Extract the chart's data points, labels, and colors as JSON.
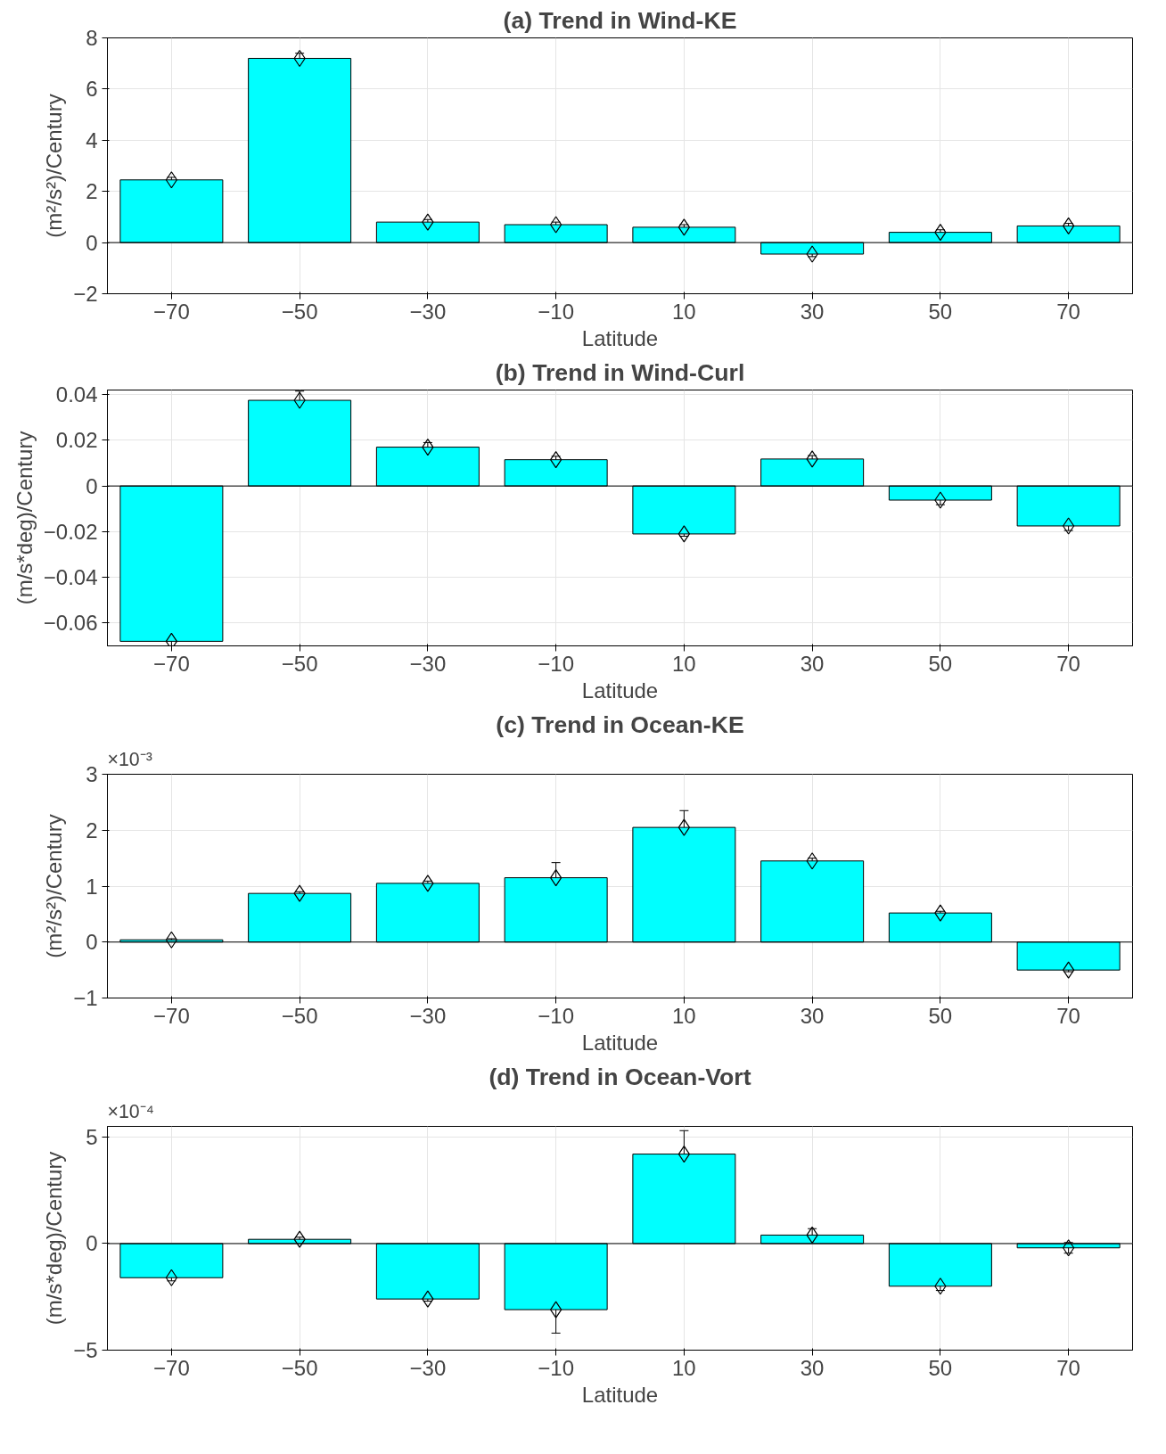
{
  "chart_data": [
    {
      "type": "bar",
      "title": "(a) Trend in Wind-KE",
      "xlabel": "Latitude",
      "ylabel": "(m²/s²)/Century",
      "grid": true,
      "x": [
        -70,
        -50,
        -30,
        -10,
        10,
        30,
        50,
        70
      ],
      "series": [
        {
          "color": "#00ffff",
          "values": [
            2.45,
            7.2,
            0.8,
            0.7,
            0.6,
            -0.45,
            0.4,
            0.65
          ]
        },
        {
          "type": "scatter",
          "marker": "diamond",
          "color": "#000000",
          "values": [
            2.45,
            7.2,
            0.8,
            0.7,
            0.6,
            -0.45,
            0.4,
            0.65
          ],
          "errors": [
            0.1,
            0.2,
            0.1,
            0.1,
            0.1,
            0.1,
            0.1,
            0.1
          ]
        }
      ],
      "xlim": [
        -80,
        80
      ],
      "xticks": [
        -70,
        -50,
        -30,
        -10,
        10,
        30,
        50,
        70
      ],
      "ylim": [
        -2,
        8
      ],
      "yticks": [
        -2,
        0,
        2,
        4,
        6,
        8
      ]
    },
    {
      "type": "bar",
      "title": "(b) Trend in Wind-Curl",
      "xlabel": "Latitude",
      "ylabel": "(m/s*deg)/Century",
      "grid": true,
      "x": [
        -70,
        -50,
        -30,
        -10,
        10,
        30,
        50,
        70
      ],
      "series": [
        {
          "color": "#00ffff",
          "values": [
            -0.068,
            0.0375,
            0.017,
            0.0115,
            -0.021,
            0.0118,
            -0.0062,
            -0.0175
          ]
        },
        {
          "type": "scatter",
          "marker": "diamond",
          "color": "#000000",
          "values": [
            -0.068,
            0.0375,
            0.017,
            0.0115,
            -0.021,
            0.0118,
            -0.0062,
            -0.0175
          ],
          "errors": [
            0.003,
            0.004,
            0.002,
            0.0015,
            0.001,
            0.0015,
            0.002,
            0.002
          ]
        }
      ],
      "xlim": [
        -80,
        80
      ],
      "xticks": [
        -70,
        -50,
        -30,
        -10,
        10,
        30,
        50,
        70
      ],
      "ylim": [
        -0.07,
        0.042
      ],
      "yticks": [
        -0.06,
        -0.04,
        -0.02,
        0,
        0.02,
        0.04
      ]
    },
    {
      "type": "bar",
      "title": "(c) Trend in Ocean-KE",
      "xlabel": "Latitude",
      "ylabel": "(m²/s²)/Century",
      "grid": true,
      "x": [
        -70,
        -50,
        -30,
        -10,
        10,
        30,
        50,
        70
      ],
      "series": [
        {
          "color": "#00ffff",
          "values": [
            0.04,
            0.87,
            1.05,
            1.15,
            2.05,
            1.45,
            0.52,
            -0.5
          ]
        },
        {
          "type": "scatter",
          "marker": "diamond",
          "color": "#000000",
          "values": [
            0.04,
            0.87,
            1.05,
            1.15,
            2.05,
            1.45,
            0.52,
            -0.5
          ],
          "errors": [
            0.02,
            0.03,
            0.04,
            0.27,
            0.3,
            0.05,
            0.03,
            0.03
          ]
        }
      ],
      "xlim": [
        -80,
        80
      ],
      "xticks": [
        -70,
        -50,
        -30,
        -10,
        10,
        30,
        50,
        70
      ],
      "ylim": [
        -1,
        3
      ],
      "yticks": [
        -1,
        0,
        1,
        2,
        3
      ],
      "annotations": [
        "×10⁻³"
      ]
    },
    {
      "type": "bar",
      "title": "(d) Trend in Ocean-Vort",
      "xlabel": "Latitude",
      "ylabel": "(m/s*deg)/Century",
      "grid": true,
      "x": [
        -70,
        -50,
        -30,
        -10,
        10,
        30,
        50,
        70
      ],
      "series": [
        {
          "color": "#00ffff",
          "values": [
            -1.6,
            0.2,
            -2.6,
            -3.1,
            4.2,
            0.4,
            -2.0,
            -0.2
          ]
        },
        {
          "type": "scatter",
          "marker": "diamond",
          "color": "#000000",
          "values": [
            -1.6,
            0.2,
            -2.6,
            -3.1,
            4.2,
            0.4,
            -2.0,
            -0.2
          ],
          "errors": [
            0.15,
            0.1,
            0.1,
            1.1,
            1.1,
            0.3,
            0.2,
            0.25
          ]
        }
      ],
      "xlim": [
        -80,
        80
      ],
      "xticks": [
        -70,
        -50,
        -30,
        -10,
        10,
        30,
        50,
        70
      ],
      "ylim": [
        -5,
        5.5
      ],
      "yticks": [
        -5,
        0,
        5
      ],
      "annotations": [
        "×10⁻⁴"
      ]
    }
  ]
}
